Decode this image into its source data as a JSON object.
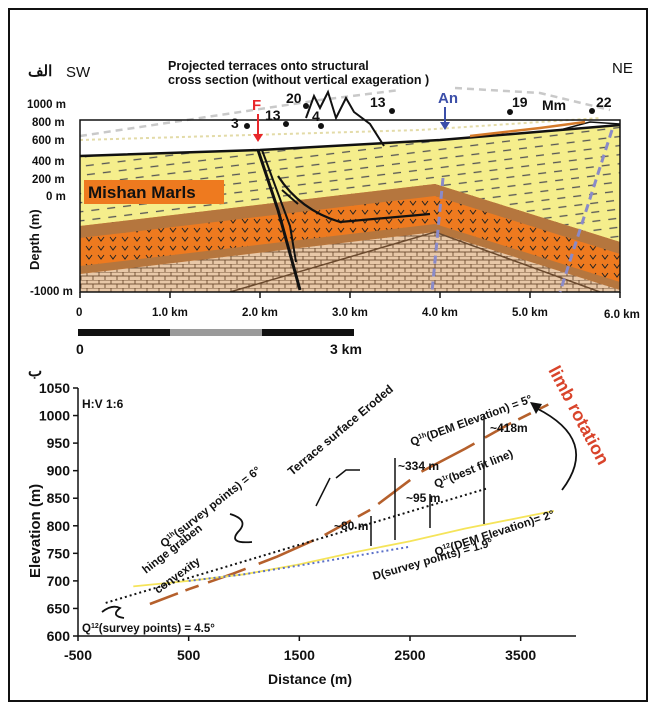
{
  "panel_a": {
    "panel_label": "الف",
    "title_line1": "Projected terraces  onto structural",
    "title_line2": "cross section (without vertical exageration )",
    "sw_label": "SW",
    "ne_label": "NE",
    "fault_label": "F",
    "anticline_label": "An",
    "formation_label": "Mm",
    "unit_label": "Mishan Marls",
    "y_axis_title": "Depth (m)",
    "y_ticks": [
      "1000 m",
      "800 m",
      "600 m",
      "400 m",
      "200 m",
      "0 m",
      "-1000 m"
    ],
    "x_ticks": [
      "0",
      "1.0 km",
      "2.0 km",
      "3.0 km",
      "4.0 km",
      "5.0 km",
      "6.0 km"
    ],
    "terrace_numbers": [
      "3",
      "13",
      "20",
      "4",
      "13",
      "19",
      "22"
    ],
    "scale_bar": {
      "start_label": "0",
      "end_label": "3 km"
    },
    "colors": {
      "marl": "#f5ee8c",
      "orange": "#ee7a1f",
      "brown": "#b5763e",
      "brick": "#e8c8a8",
      "fault_red": "#e8262a",
      "an_blue": "#3b4ea8"
    }
  },
  "panel_b": {
    "panel_label": "ب",
    "ratio_label": "H:V 1:6",
    "limb_rotation_label": "limb rotation",
    "annotations": {
      "q_survey_6": "Q",
      "q_survey_6_sup": "1h",
      "q_survey_6_rest": "(survey points) = 6°",
      "terrace_eroded": "Terrace surface Eroded",
      "q_dem_5": "Q",
      "q_dem_5_sup": "1h",
      "q_dem_5_rest": "(DEM Elevation) = 5°",
      "q_best_fit": "Q",
      "q_best_fit_sup": "1r",
      "q_best_fit_rest": "(best fit line)",
      "hinge_graben": "hinge graben",
      "convexity": "convexity",
      "q_dem_2": "Q",
      "q_dem_2_sup": "12",
      "q_dem_2_rest": "(DEM Elevation)= 2°",
      "d_survey": "D(survey points) = 1.9°",
      "q_survey_45": "Q",
      "q_survey_45_sup": "12",
      "q_survey_45_rest": "(survey points) = 4.5°",
      "m418": "~418m",
      "m334": "~334 m",
      "m95": "~95 m",
      "m80": "~80 m"
    },
    "colors": {
      "brown": "#b5602c",
      "yellow": "#f5e45a",
      "blue": "#5a6fc8"
    }
  },
  "chart_data": [
    {
      "type": "line",
      "title": "",
      "xlabel": "Distance (m)",
      "ylabel": "Elevation (m)",
      "xlim": [
        -500,
        4000
      ],
      "ylim": [
        600,
        1050
      ],
      "x_ticks": [
        "-500",
        "500",
        "1500",
        "2500",
        "3500"
      ],
      "y_ticks": [
        "600",
        "650",
        "700",
        "750",
        "800",
        "850",
        "900",
        "950",
        "1000",
        "1050"
      ],
      "grid": false,
      "legend": "none",
      "series": [
        {
          "style": "solid",
          "color": "#b5602c",
          "x": [
            150,
            500,
            900,
            1300,
            1700,
            2150,
            2600,
            3000,
            3400,
            3750
          ],
          "y": [
            658,
            685,
            713,
            744,
            780,
            830,
            898,
            940,
            985,
            1020
          ]
        },
        {
          "style": "solid",
          "color": "#f5e45a",
          "x": [
            0,
            500,
            1000,
            1500,
            2000,
            2500,
            3000,
            3500,
            3800
          ],
          "y": [
            690,
            700,
            712,
            730,
            752,
            772,
            795,
            815,
            827
          ]
        },
        {
          "style": "dotted",
          "color": "#5a6fc8",
          "x": [
            500,
            1000,
            1500,
            2000,
            2500
          ],
          "y": [
            700,
            712,
            728,
            745,
            762
          ]
        },
        {
          "style": "dotted",
          "color": "#111111",
          "x": [
            -250,
            3200
          ],
          "y": [
            660,
            868
          ]
        }
      ]
    }
  ]
}
